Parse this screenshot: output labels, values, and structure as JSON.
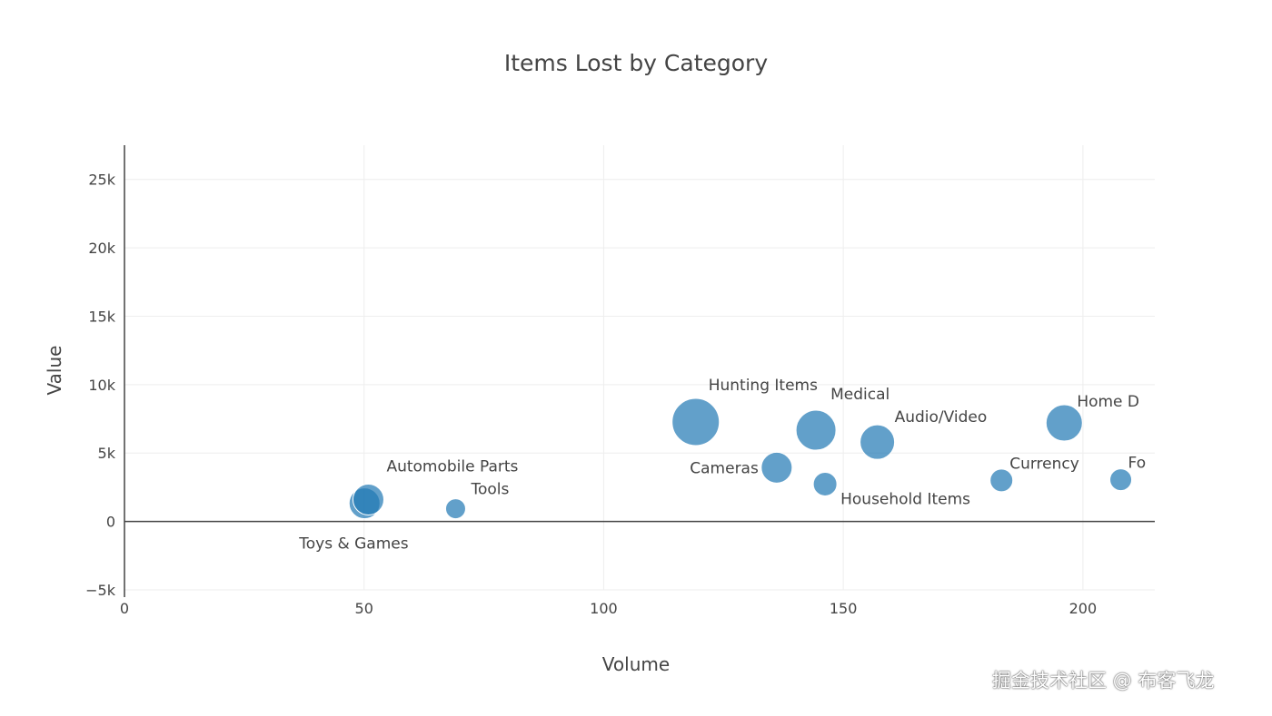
{
  "chart_data": {
    "type": "scatter",
    "title": "Items Lost by Category",
    "xlabel": "Volume",
    "ylabel": "Value",
    "xlim": [
      0,
      215
    ],
    "ylim": [
      -5000,
      27500
    ],
    "xticks": [
      0,
      50,
      100,
      150,
      200
    ],
    "xtick_labels": [
      "0",
      "50",
      "100",
      "150",
      "200"
    ],
    "yticks": [
      -5000,
      0,
      5000,
      10000,
      15000,
      20000,
      25000
    ],
    "ytick_labels": [
      "−5k",
      "0",
      "5k",
      "10k",
      "15k",
      "20k",
      "25k"
    ],
    "grid": true,
    "marker_color": "#1f77b4",
    "marker_opacity": 0.7,
    "text_position": "top right",
    "points": [
      {
        "label": "Toys & Games",
        "x": 50.1,
        "y": 1330,
        "size": 34
      },
      {
        "label": "Automobile Parts",
        "x": 50.9,
        "y": 1600,
        "size": 34
      },
      {
        "label": "Tools",
        "x": 69.1,
        "y": 930,
        "size": 22
      },
      {
        "label": "Hunting Items",
        "x": 119.2,
        "y": 7270,
        "size": 52
      },
      {
        "label": "Cameras",
        "x": 136.1,
        "y": 3930,
        "size": 34
      },
      {
        "label": "Medical",
        "x": 144.3,
        "y": 6670,
        "size": 44
      },
      {
        "label": "Household Items",
        "x": 146.2,
        "y": 2730,
        "size": 26
      },
      {
        "label": "Audio/Video",
        "x": 157.1,
        "y": 5800,
        "size": 38
      },
      {
        "label": "Currency",
        "x": 183.0,
        "y": 3000,
        "size": 25
      },
      {
        "label": "Home D",
        "x": 196.1,
        "y": 7200,
        "size": 40
      },
      {
        "label": "Fo",
        "x": 207.9,
        "y": 3050,
        "size": 24
      }
    ]
  },
  "watermark": "掘金技术社区 @ 布客飞龙"
}
